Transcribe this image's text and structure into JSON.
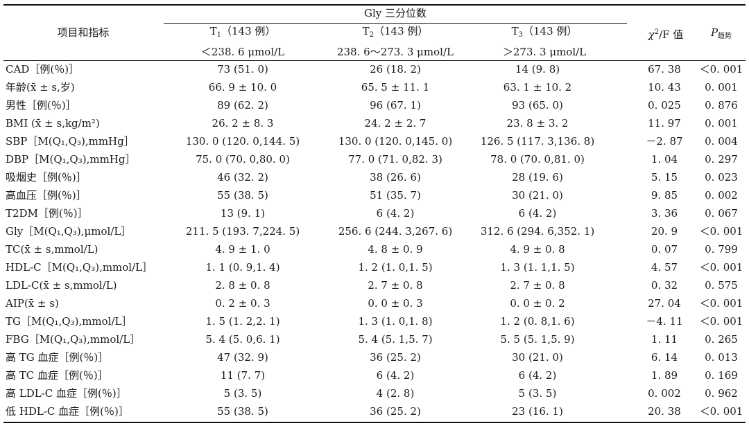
{
  "header": {
    "item_label": "项目和指标",
    "group_label": "Gly 三分位数",
    "t1_name": "T",
    "t1_sub": "1",
    "t1_count": "（143 例）",
    "t2_name": "T",
    "t2_sub": "2",
    "t2_count": "（143 例）",
    "t3_name": "T",
    "t3_sub": "3",
    "t3_count": "（143 例）",
    "t1_range": "＜238. 6 μmol/L",
    "t2_range": "238. 6～273. 3 μmol/L",
    "t3_range": "＞273. 3 μmol/L",
    "chi_main": "χ",
    "chi_sup": "2",
    "chi_rest": "/F 值",
    "p_main": "P",
    "p_sub": "趋势"
  },
  "rows": [
    {
      "label": "CAD［例(％)］",
      "t1": "73 (51. 0)",
      "t2": "26 (18. 2)",
      "t3": "14 (9. 8)",
      "stat": "67. 38",
      "p": "＜0. 001"
    },
    {
      "label": "年龄(x̄ ± s,岁)",
      "t1": "66. 9 ± 10. 0",
      "t2": "65. 5 ± 11. 1",
      "t3": "63. 1 ± 10. 2",
      "stat": "10. 43",
      "p": "0. 001"
    },
    {
      "label": "男性［例(％)］",
      "t1": "89 (62. 2)",
      "t2": "96 (67. 1)",
      "t3": "93 (65. 0)",
      "stat": "0. 025",
      "p": "0. 876"
    },
    {
      "label": "BMI (x̄ ± s,kg/m²)",
      "t1": "26. 2 ±  8. 3",
      "t2": "24. 2 ±  2. 7",
      "t3": "23. 8 ±  3. 2",
      "stat": "11. 97",
      "p": "0. 001"
    },
    {
      "label": "SBP［M(Q₁,Q₃),mmHg］",
      "t1": "130. 0 (120. 0,144. 5)",
      "t2": "130. 0 (120. 0,145. 0)",
      "t3": "126. 5 (117. 3,136. 8)",
      "stat": "－2. 87",
      "p": "0. 004"
    },
    {
      "label": "DBP［M(Q₁,Q₃),mmHg］",
      "t1": "75. 0 (70. 0,80. 0)",
      "t2": "77. 0 (71. 0,82. 3)",
      "t3": "78. 0 (70. 0,81. 0)",
      "stat": "1. 04",
      "p": "0. 297"
    },
    {
      "label": "吸烟史［例(％)］",
      "t1": "46 (32. 2)",
      "t2": "38 (26. 6)",
      "t3": "28 (19. 6)",
      "stat": "5. 15",
      "p": "0. 023"
    },
    {
      "label": "高血压［例(％)］",
      "t1": "55 (38. 5)",
      "t2": "51 (35. 7)",
      "t3": "30 (21. 0)",
      "stat": "9. 85",
      "p": "0. 002"
    },
    {
      "label": "T2DM［例(％)］",
      "t1": "13 (9. 1)",
      "t2": "6 (4. 2)",
      "t3": "6 (4. 2)",
      "stat": "3. 36",
      "p": "0. 067"
    },
    {
      "label": "Gly［M(Q₁,Q₃),μmol/L］",
      "t1": "211. 5 (193. 7,224. 5)",
      "t2": "256. 6 (244. 3,267. 6)",
      "t3": "312. 6 (294. 6,352. 1)",
      "stat": "20. 9",
      "p": "＜0. 001"
    },
    {
      "label": "TC(x̄ ± s,mmol/L)",
      "t1": "4. 9 ±  1. 0",
      "t2": "4. 8 ±  0. 9",
      "t3": "4. 9 ±  0. 8",
      "stat": "0. 07",
      "p": "0. 799"
    },
    {
      "label": "HDL-C［M(Q₁,Q₃),mmol/L］",
      "t1": "1. 1 (0. 9,1. 4)",
      "t2": "1. 2 (1. 0,1. 5)",
      "t3": "1. 3 (1. 1,1. 5)",
      "stat": "4. 57",
      "p": "＜0. 001"
    },
    {
      "label": "LDL-C(x̄ ± s,mmol/L)",
      "t1": "2. 8 ±  0. 8",
      "t2": "2. 7 ±  0. 8",
      "t3": "2. 7 ±  0. 8",
      "stat": "0. 32",
      "p": "0. 575"
    },
    {
      "label": "AIP(x̄ ± s)",
      "t1": "0. 2 ±  0. 3",
      "t2": "0. 0 ±  0. 3",
      "t3": "0. 0 ±  0. 2",
      "stat": "27. 04",
      "p": "＜0. 001"
    },
    {
      "label": "TG［M(Q₁,Q₃),mmol/L］",
      "t1": "1. 5 (1. 2,2. 1)",
      "t2": "1. 3 (1. 0,1. 8)",
      "t3": "1. 2 (0. 8,1. 6)",
      "stat": "－4. 11",
      "p": "＜0. 001"
    },
    {
      "label": "FBG［M(Q₁,Q₃),mmol/L］",
      "t1": "5. 4 (5. 0,6. 1)",
      "t2": "5. 4 (5. 1,5. 7)",
      "t3": "5. 5 (5. 1,5. 9)",
      "stat": "1. 11",
      "p": "0. 265"
    },
    {
      "label": "高 TG 血症［例(％)］",
      "t1": "47 (32. 9)",
      "t2": "36 (25. 2)",
      "t3": "30 (21. 0)",
      "stat": "6. 14",
      "p": "0. 013"
    },
    {
      "label": "高 TC 血症［例(％)］",
      "t1": "11 (7. 7)",
      "t2": "6 (4. 2)",
      "t3": "6 (4. 2)",
      "stat": "1. 89",
      "p": "0. 169"
    },
    {
      "label": "高 LDL-C 血症［例(％)］",
      "t1": "5 (3. 5)",
      "t2": "4 (2. 8)",
      "t3": "5 (3. 5)",
      "stat": "0. 002",
      "p": "0. 962"
    },
    {
      "label": "低 HDL-C 血症［例(％)］",
      "t1": "55 (38. 5)",
      "t2": "36 (25. 2)",
      "t3": "23 (16. 1)",
      "stat": "20. 38",
      "p": "＜0. 001"
    }
  ]
}
